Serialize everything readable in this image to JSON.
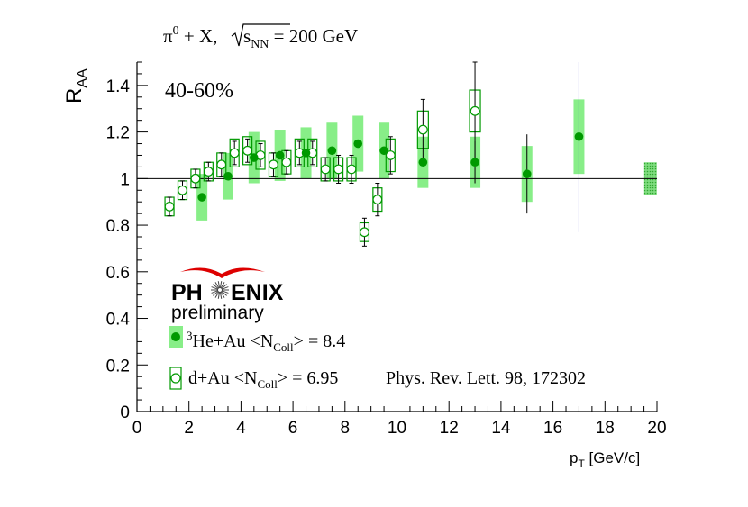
{
  "chart_data": {
    "type": "scatter",
    "title": "π⁰ + X, √s_NN = 200 GeV",
    "title_parts": {
      "main": "π",
      "sup": "0",
      "rest": " + X, ",
      "sqrt_s": "s",
      "sub": "NN",
      "tail": " = 200 GeV"
    },
    "ylabel": {
      "main": "R",
      "sub": "AA"
    },
    "xlabel": {
      "main": "p",
      "sub": "T",
      "tail": " [GeV/c]"
    },
    "xlim": [
      0,
      20
    ],
    "ylim": [
      0,
      1.5
    ],
    "x_ticks": [
      0,
      2,
      4,
      6,
      8,
      10,
      12,
      14,
      16,
      18,
      20
    ],
    "y_ticks": [
      0,
      0.2,
      0.4,
      0.6,
      0.8,
      1,
      1.2,
      1.4
    ],
    "x_tick_labels": [
      "0",
      "2",
      "4",
      "6",
      "8",
      "10",
      "12",
      "14",
      "16",
      "18",
      "20"
    ],
    "y_tick_labels": [
      "0",
      "0.2",
      "0.4",
      "0.6",
      "0.8",
      "1",
      "1.2",
      "1.4"
    ],
    "reference_line": 1,
    "centrality_label": "40-60%",
    "logo": {
      "text_left": "PH",
      "text_right": "ENIX",
      "subtitle": "preliminary"
    },
    "citation": "Phys. Rev. Lett. 98, 172302",
    "legend_placement": "bottom-left",
    "legend": [
      {
        "series": "he3au",
        "pre_sup": "3",
        "main": "He+Au <N",
        "sub": "Coll",
        "tail": "> = 8.4"
      },
      {
        "series": "dau",
        "main": "d+Au <N",
        "sub": "Coll",
        "tail": "> = 6.95"
      }
    ],
    "normalization_box": {
      "x": 19.75,
      "y_low": 0.93,
      "y_high": 1.07
    },
    "series": [
      {
        "id": "he3au",
        "name": "³He+Au <N_Coll> = 8.4",
        "marker": "filled-circle",
        "color": "#009900",
        "syst_color": "#88ee88",
        "points": [
          {
            "x": 2.5,
            "y": 0.92,
            "stat": 0.0,
            "sys": 0.1
          },
          {
            "x": 3.5,
            "y": 1.01,
            "stat": 0.0,
            "sys": 0.1
          },
          {
            "x": 4.5,
            "y": 1.09,
            "stat": 0.0,
            "sys": 0.11
          },
          {
            "x": 5.5,
            "y": 1.1,
            "stat": 0.0,
            "sys": 0.11
          },
          {
            "x": 6.5,
            "y": 1.11,
            "stat": 0.0,
            "sys": 0.11
          },
          {
            "x": 7.5,
            "y": 1.12,
            "stat": 0.0,
            "sys": 0.12
          },
          {
            "x": 8.5,
            "y": 1.15,
            "stat": 0.0,
            "sys": 0.12
          },
          {
            "x": 9.5,
            "y": 1.12,
            "stat": 0.0,
            "sys": 0.12
          },
          {
            "x": 11.0,
            "y": 1.07,
            "stat": 0.0,
            "sys": 0.11
          },
          {
            "x": 13.0,
            "y": 1.07,
            "stat": 0.09,
            "sys": 0.11
          },
          {
            "x": 15.0,
            "y": 1.02,
            "stat": 0.17,
            "sys": 0.12
          },
          {
            "x": 17.0,
            "y": 1.18,
            "stat": 0.41,
            "sys": 0.16
          }
        ]
      },
      {
        "id": "dau",
        "name": "d+Au <N_Coll> = 6.95",
        "marker": "open-circle",
        "color": "#009900",
        "points": [
          {
            "x": 1.25,
            "y": 0.88,
            "stat": 0.04,
            "sys": 0.04
          },
          {
            "x": 1.75,
            "y": 0.95,
            "stat": 0.04,
            "sys": 0.04
          },
          {
            "x": 2.25,
            "y": 1.0,
            "stat": 0.04,
            "sys": 0.04
          },
          {
            "x": 2.75,
            "y": 1.03,
            "stat": 0.04,
            "sys": 0.04
          },
          {
            "x": 3.25,
            "y": 1.06,
            "stat": 0.05,
            "sys": 0.05
          },
          {
            "x": 3.75,
            "y": 1.11,
            "stat": 0.05,
            "sys": 0.06
          },
          {
            "x": 4.25,
            "y": 1.12,
            "stat": 0.05,
            "sys": 0.06
          },
          {
            "x": 4.75,
            "y": 1.1,
            "stat": 0.05,
            "sys": 0.06
          },
          {
            "x": 5.25,
            "y": 1.06,
            "stat": 0.05,
            "sys": 0.05
          },
          {
            "x": 5.75,
            "y": 1.07,
            "stat": 0.05,
            "sys": 0.05
          },
          {
            "x": 6.25,
            "y": 1.11,
            "stat": 0.05,
            "sys": 0.06
          },
          {
            "x": 6.75,
            "y": 1.11,
            "stat": 0.05,
            "sys": 0.06
          },
          {
            "x": 7.25,
            "y": 1.04,
            "stat": 0.05,
            "sys": 0.05
          },
          {
            "x": 7.75,
            "y": 1.04,
            "stat": 0.06,
            "sys": 0.05
          },
          {
            "x": 8.25,
            "y": 1.04,
            "stat": 0.06,
            "sys": 0.05
          },
          {
            "x": 8.75,
            "y": 0.77,
            "stat": 0.06,
            "sys": 0.04
          },
          {
            "x": 9.25,
            "y": 0.91,
            "stat": 0.07,
            "sys": 0.05
          },
          {
            "x": 9.75,
            "y": 1.1,
            "stat": 0.08,
            "sys": 0.07
          },
          {
            "x": 11.0,
            "y": 1.21,
            "stat": 0.13,
            "sys": 0.08
          },
          {
            "x": 13.0,
            "y": 1.29,
            "stat": 0.21,
            "sys": 0.09
          }
        ]
      }
    ]
  }
}
